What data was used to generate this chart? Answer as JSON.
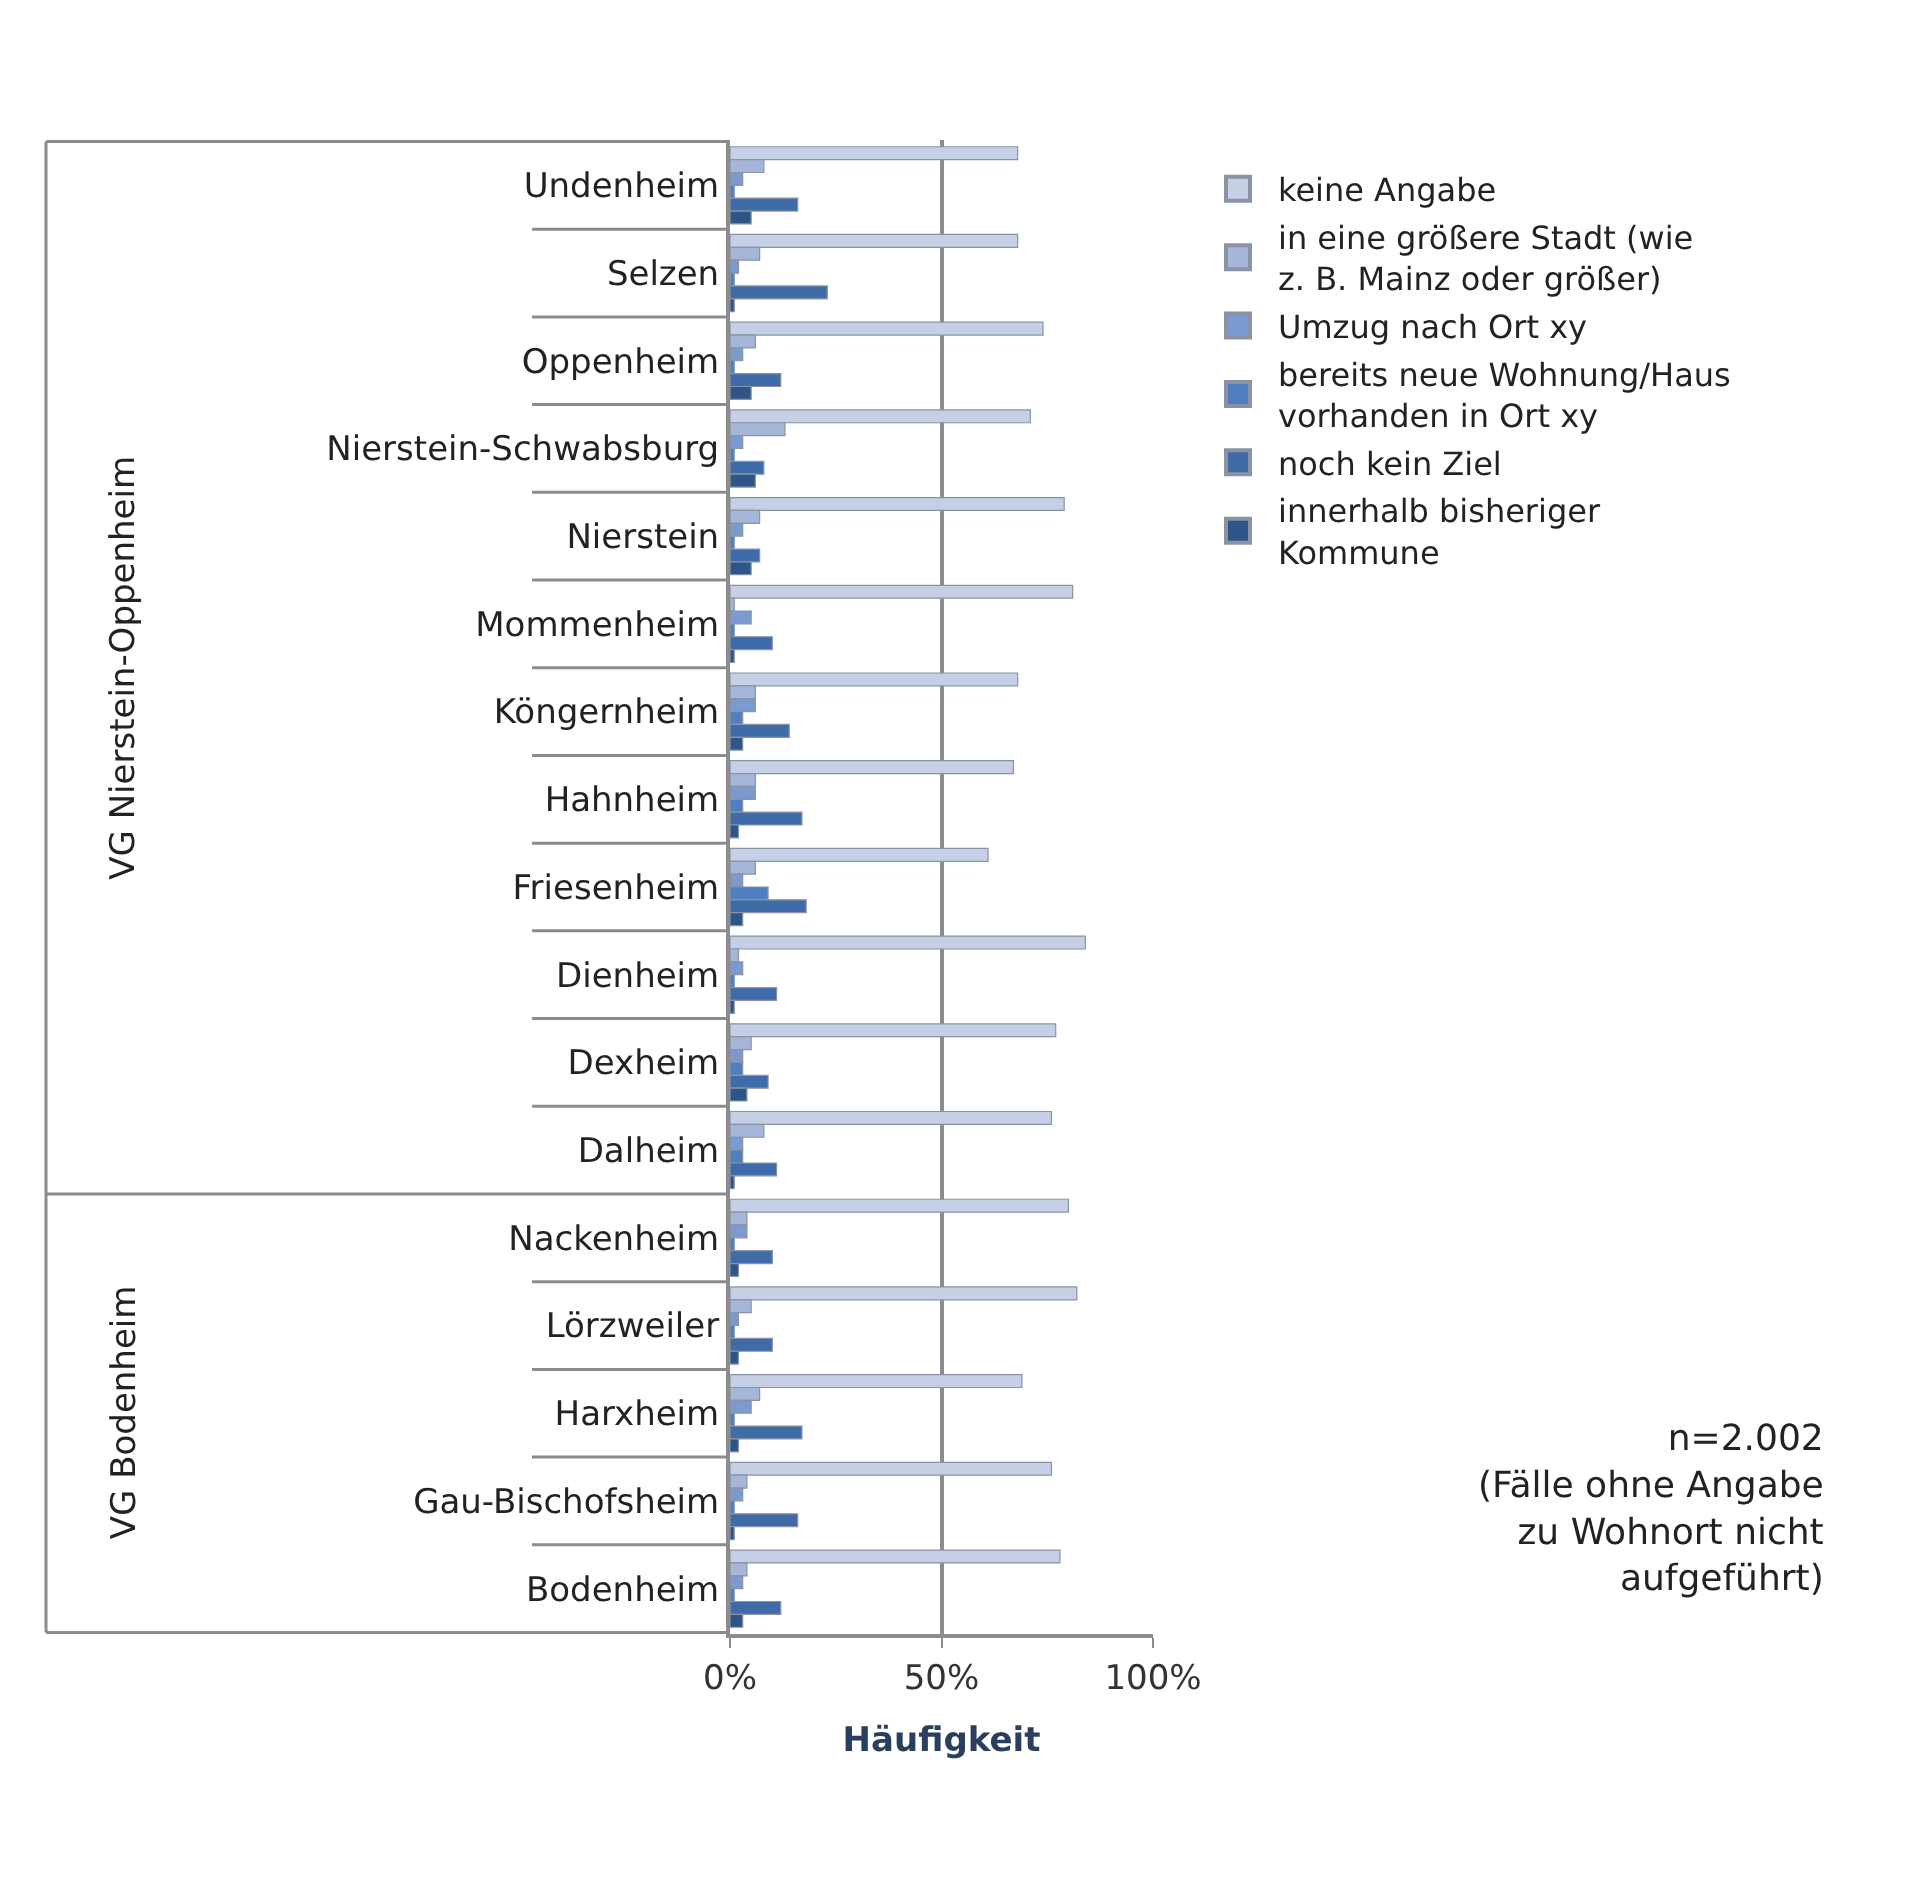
{
  "chart_data": {
    "type": "bar",
    "orientation": "horizontal",
    "xlabel": "Häufigkeit",
    "categories": [
      "Undenheim",
      "Selzen",
      "Oppenheim",
      "Nierstein-Schwabsburg",
      "Nierstein",
      "Mommenheim",
      "Köngernheim",
      "Hahnheim",
      "Friesenheim",
      "Dienheim",
      "Dexheim",
      "Dalheim",
      "Nackenheim",
      "Lörzweiler",
      "Harxheim",
      "Gau-Bischofsheim",
      "Bodenheim"
    ],
    "series": [
      {
        "name": "keine Angabe",
        "color": "#c5d0e6",
        "values": [
          68,
          68,
          74,
          71,
          79,
          81,
          68,
          67,
          61,
          84,
          77,
          76,
          80,
          82,
          69,
          76,
          78
        ]
      },
      {
        "name": "in eine größere Stadt (wie z. B. Mainz oder größer)",
        "color": "#a5b6d9",
        "values": [
          8,
          7,
          6,
          13,
          7,
          1,
          6,
          6,
          6,
          2,
          5,
          8,
          4,
          5,
          7,
          4,
          4
        ]
      },
      {
        "name": "Umzug nach Ort xy",
        "color": "#7b9ad0",
        "values": [
          3,
          2,
          3,
          3,
          3,
          5,
          6,
          6,
          3,
          3,
          3,
          3,
          4,
          2,
          5,
          3,
          3
        ]
      },
      {
        "name": "bereits neue Wohnung/Haus vorhanden in Ort xy",
        "color": "#4f7fc0",
        "values": [
          1,
          1,
          1,
          1,
          1,
          1,
          3,
          3,
          9,
          1,
          3,
          3,
          1,
          1,
          1,
          1,
          1
        ]
      },
      {
        "name": "noch kein Ziel",
        "color": "#3f6ca8",
        "values": [
          16,
          23,
          12,
          8,
          7,
          10,
          14,
          17,
          18,
          11,
          9,
          11,
          10,
          10,
          17,
          16,
          12
        ]
      },
      {
        "name": "innerhalb bisheriger Kommune",
        "color": "#2e5587",
        "values": [
          5,
          1,
          5,
          6,
          5,
          1,
          3,
          2,
          3,
          1,
          4,
          1,
          2,
          2,
          2,
          1,
          3
        ]
      }
    ],
    "xlim": [
      0,
      100
    ],
    "xticks": [
      {
        "value": 0,
        "label": "0%"
      },
      {
        "value": 50,
        "label": "50%"
      },
      {
        "value": 100,
        "label": "100%"
      }
    ],
    "grid": "x",
    "legend": "right",
    "annotations": [
      "VG Nierstein-Oppenheim",
      "VG Bodenheim",
      "n=2.002\n(Fälle ohne Angabe\nzu Wohnort nicht\naufgeführt)"
    ]
  }
}
